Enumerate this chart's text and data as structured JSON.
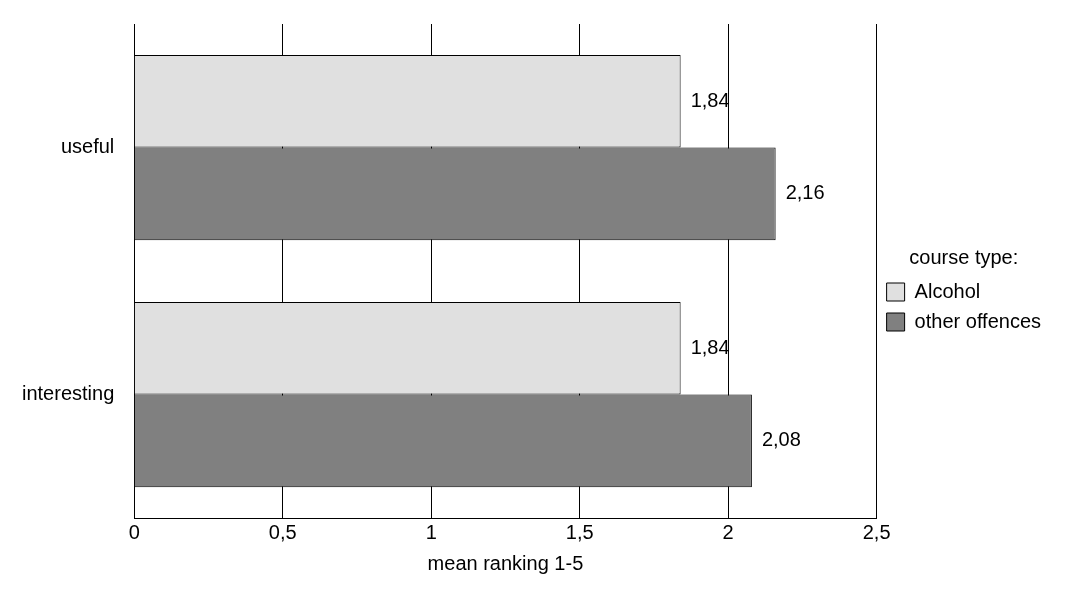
{
  "chart_data": {
    "type": "bar",
    "orientation": "horizontal",
    "xlabel": "mean ranking 1-5",
    "legend_title": "course type:",
    "legend": "right",
    "grid": "x",
    "categories": [
      "useful",
      "interesting"
    ],
    "series": [
      {
        "name": "Alcohol",
        "color": "#e0e0e0",
        "values": [
          1.84,
          1.84
        ],
        "value_labels": [
          "1,84",
          "1,84"
        ]
      },
      {
        "name": "other offences",
        "color": "#808080",
        "values": [
          2.16,
          2.08
        ],
        "value_labels": [
          "2,16",
          "2,08"
        ]
      }
    ],
    "xlim": [
      0,
      2.5
    ],
    "xticks": [
      0,
      {
        "value": 0.5,
        "label": "0,5"
      },
      1,
      {
        "value": 1.5,
        "label": "1,5"
      },
      2,
      {
        "value": 2.5,
        "label": "2,5"
      }
    ]
  }
}
